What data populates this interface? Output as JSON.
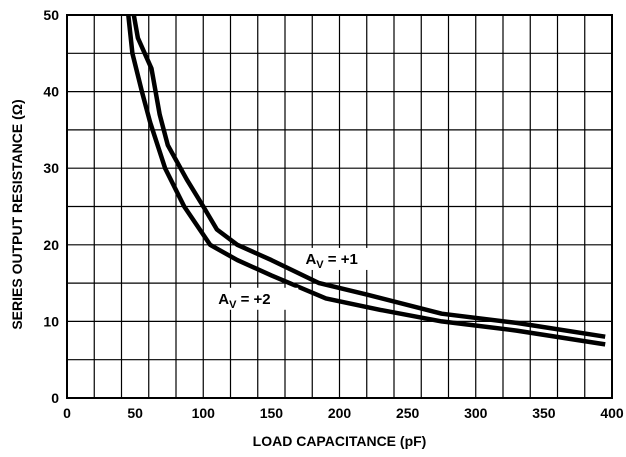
{
  "chart_data": {
    "type": "line",
    "title": "",
    "xlabel": "LOAD CAPACITANCE (pF)",
    "ylabel": "SERIES OUTPUT RESISTANCE (Ω)",
    "xlim": [
      0,
      400
    ],
    "ylim": [
      0,
      50
    ],
    "xticks": [
      0,
      50,
      100,
      150,
      200,
      250,
      300,
      350,
      400
    ],
    "yticks": [
      0,
      10,
      20,
      30,
      40,
      50
    ],
    "grid": true,
    "grid_x_step": 20,
    "grid_y_step": 5,
    "series": [
      {
        "label_main": "A",
        "label_sub": "V",
        "label_rest": " = +1",
        "points": [
          [
            49,
            50
          ],
          [
            52,
            47
          ],
          [
            57,
            45
          ],
          [
            62,
            43
          ],
          [
            68,
            37
          ],
          [
            74,
            33
          ],
          [
            88,
            28.5
          ],
          [
            100,
            25
          ],
          [
            110,
            22
          ],
          [
            125,
            20
          ],
          [
            150,
            18
          ],
          [
            185,
            15
          ],
          [
            220,
            13.5
          ],
          [
            275,
            11
          ],
          [
            330,
            9.8
          ],
          [
            395,
            8
          ]
        ]
      },
      {
        "label_main": "A",
        "label_sub": "V",
        "label_rest": " = +2",
        "points": [
          [
            45,
            50
          ],
          [
            48,
            45
          ],
          [
            55,
            40
          ],
          [
            61,
            36
          ],
          [
            72,
            30
          ],
          [
            86,
            25
          ],
          [
            105,
            20
          ],
          [
            125,
            18
          ],
          [
            150,
            16
          ],
          [
            190,
            13
          ],
          [
            230,
            11.5
          ],
          [
            275,
            10
          ],
          [
            330,
            8.8
          ],
          [
            395,
            7
          ]
        ]
      }
    ],
    "annotations": [
      {
        "series_index": 0,
        "x": 175,
        "y": 17.5
      },
      {
        "series_index": 1,
        "x": 111,
        "y": 12.3
      }
    ]
  }
}
